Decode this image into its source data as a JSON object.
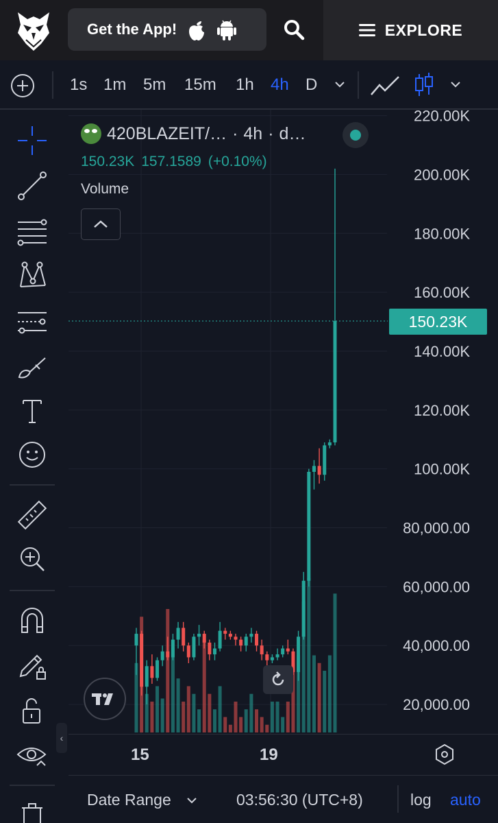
{
  "header": {
    "get_app_label": "Get the App!",
    "explore_label": "EXPLORE",
    "icons": [
      "owl-logo-icon",
      "apple-icon",
      "android-icon",
      "search-icon",
      "hamburger-menu-icon"
    ]
  },
  "toolbar": {
    "timeframes": [
      "1s",
      "1m",
      "5m",
      "15m",
      "1h",
      "4h",
      "D"
    ],
    "active_timeframe": "4h"
  },
  "legend": {
    "symbol": "420BLAZEIT/…",
    "interval": "4h",
    "exchange_short": "d…",
    "separator": "·",
    "last_price": "150.23K",
    "value2": "157.1589",
    "change": "(+0.10%)",
    "volume_label": "Volume"
  },
  "price_axis": {
    "labels": [
      "220.00K",
      "200.00K",
      "180.00K",
      "160.00K",
      "140.00K",
      "120.00K",
      "100.00K",
      "80,000.00",
      "60,000.00",
      "40,000.00",
      "20,000.00"
    ],
    "current_price_tag": "150.23K"
  },
  "time_axis": {
    "labels": [
      "15",
      "19"
    ]
  },
  "bottom_bar": {
    "date_range_label": "Date Range",
    "time": "03:56:30 (UTC+8)",
    "log_label": "log",
    "auto_label": "auto"
  },
  "colors": {
    "up": "#26a69a",
    "down": "#ef5350",
    "accent": "#2962ff",
    "background": "#131722"
  },
  "chart_data": {
    "type": "candlestick",
    "ylim": [
      10000,
      222000
    ],
    "current_price": 150230,
    "x_ticks": [
      "15",
      "19"
    ],
    "candles": [
      {
        "o": 40000,
        "h": 46000,
        "l": 30000,
        "c": 44000
      },
      {
        "o": 44000,
        "h": 45000,
        "l": 23000,
        "c": 26000
      },
      {
        "o": 26000,
        "h": 35000,
        "l": 20000,
        "c": 33000
      },
      {
        "o": 33000,
        "h": 37000,
        "l": 27000,
        "c": 29000
      },
      {
        "o": 29000,
        "h": 36000,
        "l": 28000,
        "c": 35000
      },
      {
        "o": 35000,
        "h": 40000,
        "l": 33000,
        "c": 38000
      },
      {
        "o": 38000,
        "h": 43000,
        "l": 35000,
        "c": 36000
      },
      {
        "o": 36000,
        "h": 44000,
        "l": 35000,
        "c": 42000
      },
      {
        "o": 42000,
        "h": 48000,
        "l": 39000,
        "c": 46000
      },
      {
        "o": 46000,
        "h": 48000,
        "l": 38000,
        "c": 40000
      },
      {
        "o": 40000,
        "h": 41000,
        "l": 34000,
        "c": 36000
      },
      {
        "o": 36000,
        "h": 44000,
        "l": 35000,
        "c": 43000
      },
      {
        "o": 43000,
        "h": 47000,
        "l": 40000,
        "c": 44000
      },
      {
        "o": 44000,
        "h": 45000,
        "l": 39000,
        "c": 41000
      },
      {
        "o": 41000,
        "h": 42000,
        "l": 35000,
        "c": 37000
      },
      {
        "o": 37000,
        "h": 41000,
        "l": 35000,
        "c": 39000
      },
      {
        "o": 39000,
        "h": 48000,
        "l": 38000,
        "c": 45000
      },
      {
        "o": 45000,
        "h": 46000,
        "l": 42000,
        "c": 44000
      },
      {
        "o": 44000,
        "h": 45000,
        "l": 42000,
        "c": 43000
      },
      {
        "o": 43000,
        "h": 44000,
        "l": 40000,
        "c": 42000
      },
      {
        "o": 42000,
        "h": 43000,
        "l": 38000,
        "c": 40000
      },
      {
        "o": 40000,
        "h": 44000,
        "l": 38000,
        "c": 43000
      },
      {
        "o": 43000,
        "h": 46000,
        "l": 41000,
        "c": 44000
      },
      {
        "o": 44000,
        "h": 45000,
        "l": 38000,
        "c": 40000
      },
      {
        "o": 40000,
        "h": 42000,
        "l": 35000,
        "c": 37000
      },
      {
        "o": 37000,
        "h": 38000,
        "l": 33000,
        "c": 35000
      },
      {
        "o": 35000,
        "h": 37000,
        "l": 34000,
        "c": 36000
      },
      {
        "o": 36000,
        "h": 39000,
        "l": 35000,
        "c": 37000
      },
      {
        "o": 37000,
        "h": 40000,
        "l": 36000,
        "c": 39000
      },
      {
        "o": 39000,
        "h": 42000,
        "l": 37000,
        "c": 38000
      },
      {
        "o": 38000,
        "h": 39000,
        "l": 30000,
        "c": 31000
      },
      {
        "o": 31000,
        "h": 45000,
        "l": 28000,
        "c": 43000
      },
      {
        "o": 43000,
        "h": 65000,
        "l": 42000,
        "c": 62000
      },
      {
        "o": 62000,
        "h": 100000,
        "l": 60000,
        "c": 99000
      },
      {
        "o": 99000,
        "h": 103000,
        "l": 93000,
        "c": 101000
      },
      {
        "o": 101000,
        "h": 107000,
        "l": 95000,
        "c": 98000
      },
      {
        "o": 98000,
        "h": 109000,
        "l": 96000,
        "c": 108000
      },
      {
        "o": 108000,
        "h": 110000,
        "l": 107000,
        "c": 109000
      },
      {
        "o": 109000,
        "h": 202000,
        "l": 108000,
        "c": 150230
      }
    ],
    "volume_relative": [
      0.45,
      0.75,
      0.25,
      0.2,
      0.3,
      0.22,
      0.8,
      0.55,
      0.35,
      0.2,
      0.3,
      0.25,
      0.15,
      0.6,
      0.25,
      0.15,
      0.3,
      0.1,
      0.05,
      0.2,
      0.1,
      0.15,
      0.25,
      0.15,
      0.1,
      0.05,
      0.2,
      0.2,
      0.1,
      0.2,
      0.45,
      0.5,
      0.85,
      1.0,
      0.5,
      0.45,
      0.4,
      0.5,
      0.9
    ]
  }
}
